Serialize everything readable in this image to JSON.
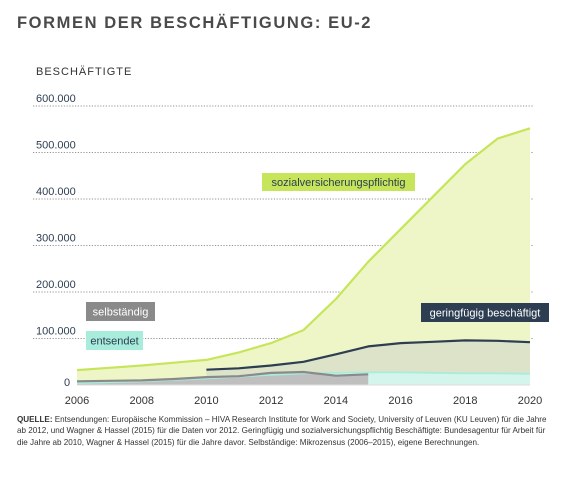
{
  "chart_data": {
    "type": "area",
    "title": "FORMEN DER BESCHÄFTIGUNG: EU-2",
    "ylabel": "BESCHÄFTIGTE",
    "xlabel": "",
    "xlim": [
      2006,
      2020
    ],
    "ylim": [
      0,
      600000
    ],
    "x_ticks": [
      2006,
      2008,
      2010,
      2012,
      2014,
      2016,
      2018,
      2020
    ],
    "x_tick_labels": [
      "2006",
      "2008",
      "2010",
      "2012",
      "2014",
      "2016",
      "2018",
      "2020"
    ],
    "y_ticks": [
      0,
      100000,
      200000,
      300000,
      400000,
      500000,
      600000
    ],
    "y_tick_labels": [
      "0",
      "100.000",
      "200.000",
      "300.000",
      "400.000",
      "500.000",
      "600.000"
    ],
    "grid": "horizontal",
    "series": [
      {
        "name": "sozialversicherungspflichtig",
        "color": "#c6e55b",
        "fill": "#eef6c8",
        "x": [
          2006,
          2007,
          2008,
          2009,
          2010,
          2011,
          2012,
          2013,
          2014,
          2015,
          2016,
          2017,
          2018,
          2019,
          2020
        ],
        "values": [
          32000,
          37000,
          42000,
          48000,
          54000,
          70000,
          90000,
          118000,
          185000,
          265000,
          335000,
          405000,
          475000,
          530000,
          552000
        ]
      },
      {
        "name": "geringfügig beschäftigt",
        "color": "#2d3e52",
        "fill": "#dde3c9",
        "x": [
          2010,
          2011,
          2012,
          2013,
          2014,
          2015,
          2016,
          2017,
          2018,
          2019,
          2020
        ],
        "values": [
          33000,
          36000,
          42000,
          50000,
          66000,
          83000,
          90000,
          93000,
          96000,
          95000,
          92000
        ]
      },
      {
        "name": "entsendet",
        "color": "#a8ecdc",
        "fill": "#d4f5ec",
        "x": [
          2006,
          2007,
          2008,
          2009,
          2010,
          2011,
          2012,
          2013,
          2014,
          2015,
          2016,
          2017,
          2018,
          2019,
          2020
        ],
        "values": [
          4000,
          6000,
          8000,
          11000,
          14000,
          18000,
          22000,
          25000,
          26000,
          27000,
          27000,
          26000,
          25000,
          25000,
          24000
        ]
      },
      {
        "name": "selbständig",
        "color": "#8a8a8a",
        "fill": "#bfbfbf",
        "x": [
          2006,
          2007,
          2008,
          2009,
          2010,
          2011,
          2012,
          2013,
          2014,
          2015
        ],
        "values": [
          8000,
          9000,
          10000,
          13000,
          17000,
          19000,
          26000,
          28000,
          20000,
          23000
        ]
      }
    ],
    "labels": {
      "sozialversicherungspflichtig": "sozialversicherungspflichtig",
      "geringfuegig": "geringfügig beschäftigt",
      "selbstaendig": "selbständig",
      "entsendet": "entsendet"
    }
  },
  "source": {
    "prefix": "QUELLE:",
    "text": " Entsendungen: Europäische Kommission – HIVA Research Institute for Work and Society, University of Leuven (KU Leuven) für die Jahre ab 2012, und Wagner & Hassel (2015) für die Daten vor 2012. Geringfügig und sozialversichungspflichtig Beschäftigte: Bundesagentur für Arbeit für die Jahre ab 2010, Wagner & Hassel (2015) für die Jahre davor. Selbständige: Mikrozensus (2006–2015), eigene Berechnungen."
  }
}
